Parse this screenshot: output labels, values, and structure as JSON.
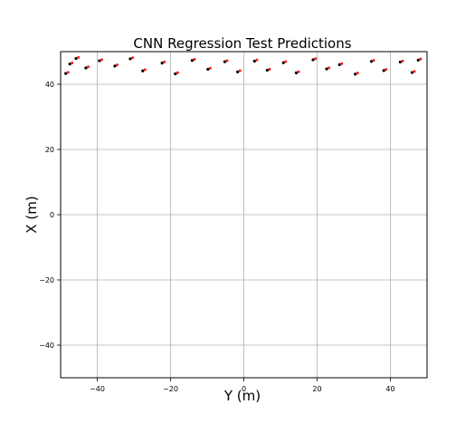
{
  "chart_data": {
    "type": "scatter",
    "title": "CNN Regression Test Predictions",
    "xlabel": "Y (m)",
    "ylabel": "X (m)",
    "xlim": [
      -50,
      50
    ],
    "ylim": [
      -50,
      50
    ],
    "x_ticks": [
      -40,
      -20,
      0,
      20,
      40
    ],
    "y_ticks": [
      -40,
      -20,
      0,
      20,
      40
    ],
    "grid": true,
    "colors": {
      "ground_truth": "#000000",
      "prediction": "#ff1a1a",
      "error_segment": "#2a2aff",
      "trace_orange": "#f4a460",
      "trace_red": "#e8341c"
    },
    "series": [
      {
        "values": [
          [
            -47.5,
            46.2
          ],
          [
            -45.8,
            47.9
          ],
          [
            -43.1,
            45.0
          ],
          [
            -48.6,
            43.3
          ],
          [
            -39.4,
            47.2
          ],
          [
            -35.2,
            45.6
          ],
          [
            -31.0,
            47.8
          ],
          [
            -27.6,
            44.1
          ],
          [
            -22.3,
            46.5
          ],
          [
            -18.7,
            43.2
          ],
          [
            -14.1,
            47.3
          ],
          [
            -9.8,
            44.6
          ],
          [
            -5.2,
            46.9
          ],
          [
            -1.7,
            43.8
          ],
          [
            2.9,
            47.1
          ],
          [
            6.4,
            44.3
          ],
          [
            10.8,
            46.6
          ],
          [
            14.3,
            43.5
          ],
          [
            18.9,
            47.5
          ],
          [
            22.6,
            44.7
          ],
          [
            26.1,
            46.0
          ],
          [
            30.4,
            43.1
          ],
          [
            34.8,
            47.0
          ],
          [
            38.2,
            44.2
          ],
          [
            42.7,
            46.8
          ],
          [
            45.9,
            43.6
          ],
          [
            47.6,
            47.4
          ]
        ]
      }
    ]
  }
}
